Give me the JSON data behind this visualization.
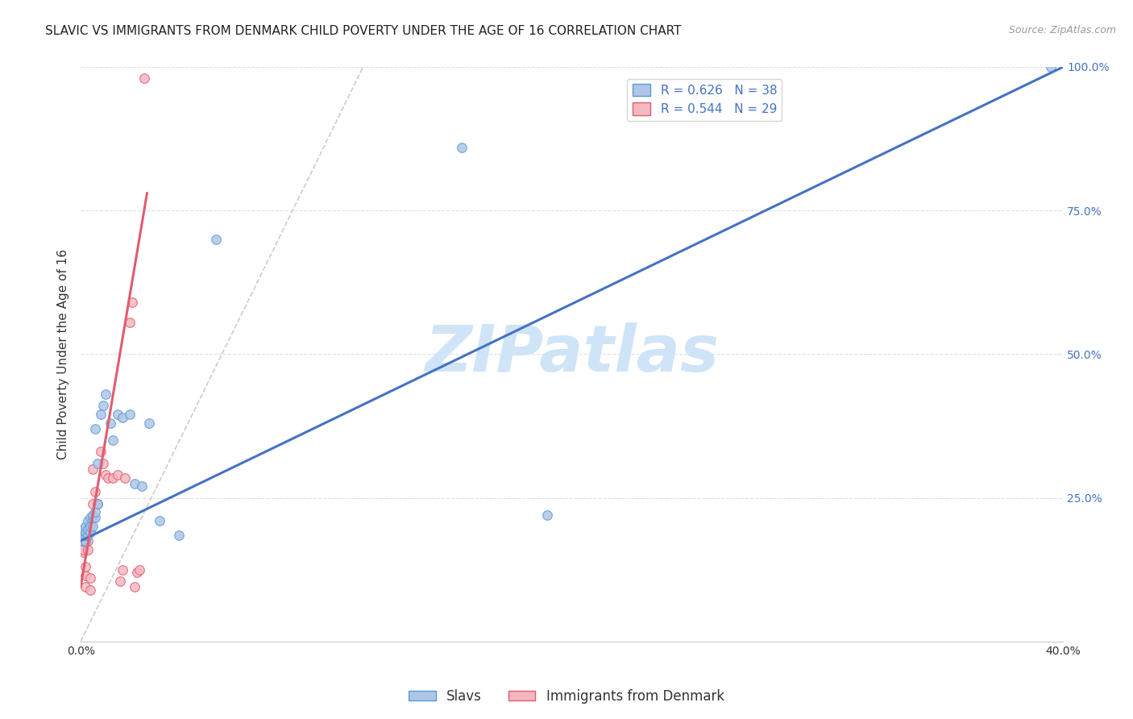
{
  "title": "SLAVIC VS IMMIGRANTS FROM DENMARK CHILD POVERTY UNDER THE AGE OF 16 CORRELATION CHART",
  "source": "Source: ZipAtlas.com",
  "ylabel": "Child Poverty Under the Age of 16",
  "xlim": [
    0.0,
    0.4
  ],
  "ylim": [
    0.0,
    1.0
  ],
  "xticks": [
    0.0,
    0.05,
    0.1,
    0.15,
    0.2,
    0.25,
    0.3,
    0.35,
    0.4
  ],
  "xticklabels": [
    "0.0%",
    "",
    "",
    "",
    "",
    "",
    "",
    "",
    "40.0%"
  ],
  "yticks": [
    0.0,
    0.25,
    0.5,
    0.75,
    1.0
  ],
  "yticklabels": [
    "",
    "25.0%",
    "50.0%",
    "75.0%",
    "100.0%"
  ],
  "slavs_scatter": {
    "x": [
      0.001,
      0.001,
      0.001,
      0.002,
      0.002,
      0.002,
      0.002,
      0.003,
      0.003,
      0.003,
      0.004,
      0.004,
      0.004,
      0.005,
      0.005,
      0.005,
      0.006,
      0.006,
      0.006,
      0.007,
      0.007,
      0.008,
      0.009,
      0.01,
      0.012,
      0.013,
      0.015,
      0.017,
      0.02,
      0.022,
      0.025,
      0.028,
      0.032,
      0.04,
      0.055,
      0.155,
      0.19,
      0.395
    ],
    "y": [
      0.175,
      0.185,
      0.195,
      0.175,
      0.185,
      0.19,
      0.2,
      0.185,
      0.195,
      0.21,
      0.19,
      0.2,
      0.215,
      0.2,
      0.215,
      0.22,
      0.215,
      0.225,
      0.37,
      0.24,
      0.31,
      0.395,
      0.41,
      0.43,
      0.38,
      0.35,
      0.395,
      0.39,
      0.395,
      0.275,
      0.27,
      0.38,
      0.21,
      0.185,
      0.7,
      0.86,
      0.22,
      1.0
    ],
    "color": "#aec6e8",
    "edgecolor": "#5b9bd5",
    "size": 70
  },
  "denmark_scatter": {
    "x": [
      0.001,
      0.001,
      0.001,
      0.002,
      0.002,
      0.002,
      0.003,
      0.003,
      0.004,
      0.004,
      0.005,
      0.005,
      0.006,
      0.007,
      0.008,
      0.009,
      0.01,
      0.011,
      0.013,
      0.015,
      0.016,
      0.017,
      0.018,
      0.02,
      0.021,
      0.022,
      0.023,
      0.024,
      0.026
    ],
    "y": [
      0.155,
      0.16,
      0.175,
      0.095,
      0.115,
      0.13,
      0.16,
      0.175,
      0.09,
      0.11,
      0.24,
      0.3,
      0.26,
      0.24,
      0.33,
      0.31,
      0.29,
      0.285,
      0.285,
      0.29,
      0.105,
      0.125,
      0.285,
      0.555,
      0.59,
      0.095,
      0.12,
      0.125,
      0.98
    ],
    "color": "#f4b8c1",
    "edgecolor": "#e05c6e",
    "size": 70
  },
  "slavs_R": 0.626,
  "slavs_N": 38,
  "denmark_R": 0.544,
  "denmark_N": 29,
  "blue_line": {
    "x0": 0.0,
    "y0": 0.175,
    "x1": 0.4,
    "y1": 1.0
  },
  "pink_line": {
    "x0": 0.0,
    "y0": 0.095,
    "x1": 0.027,
    "y1": 0.78
  },
  "ref_line": {
    "x0": 0.0,
    "y0": 0.0,
    "x1": 0.115,
    "y1": 1.0
  },
  "blue_line_color": "#4472c4",
  "pink_line_color": "#e05c6e",
  "ref_line_color": "#cccccc",
  "watermark": "ZIPatlas",
  "watermark_color": "#d0e4f7",
  "grid_color": "#e0e0e0",
  "background_color": "#ffffff",
  "title_fontsize": 11,
  "axis_label_fontsize": 11,
  "tick_fontsize": 10,
  "legend_fontsize": 11,
  "source_fontsize": 9
}
